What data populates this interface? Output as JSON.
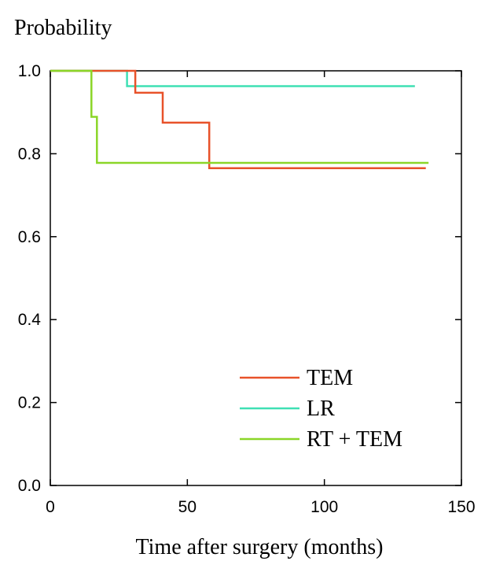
{
  "chart_data": {
    "type": "line",
    "step": true,
    "title": "",
    "ylabel": "Probability",
    "xlabel": "Time after surgery (months)",
    "xlim": [
      0,
      150
    ],
    "ylim": [
      0.0,
      1.0
    ],
    "xticks": [
      0,
      50,
      100,
      150
    ],
    "xtick_labels": [
      "0",
      "50",
      "100",
      "150"
    ],
    "yticks": [
      0.0,
      0.2,
      0.4,
      0.6,
      0.8,
      1.0
    ],
    "ytick_labels": [
      "0.0",
      "0.2",
      "0.4",
      "0.6",
      "0.8",
      "1.0"
    ],
    "grid": false,
    "legend_position": "bottom-right",
    "series": [
      {
        "name": "TEM",
        "color": "#e8522a",
        "x": [
          0,
          31,
          31,
          41,
          41,
          58,
          58,
          137
        ],
        "y": [
          1.0,
          1.0,
          0.947,
          0.947,
          0.875,
          0.875,
          0.765,
          0.765
        ]
      },
      {
        "name": "LR",
        "color": "#3fe0b4",
        "x": [
          0,
          28,
          28,
          133
        ],
        "y": [
          1.0,
          1.0,
          0.963,
          0.963
        ]
      },
      {
        "name": "RT + TEM",
        "color": "#8bd628",
        "x": [
          0,
          15,
          15,
          17,
          17,
          138
        ],
        "y": [
          1.0,
          1.0,
          0.889,
          0.889,
          0.778,
          0.778
        ]
      }
    ],
    "censor_lines": [
      {
        "color": "#b0b0b0",
        "x": [
          15,
          15
        ],
        "y": [
          1.0,
          0.889
        ]
      },
      {
        "color": "#909090",
        "x": [
          31,
          31,
          133
        ],
        "y": [
          1.0,
          0.963,
          0.963
        ]
      }
    ]
  }
}
